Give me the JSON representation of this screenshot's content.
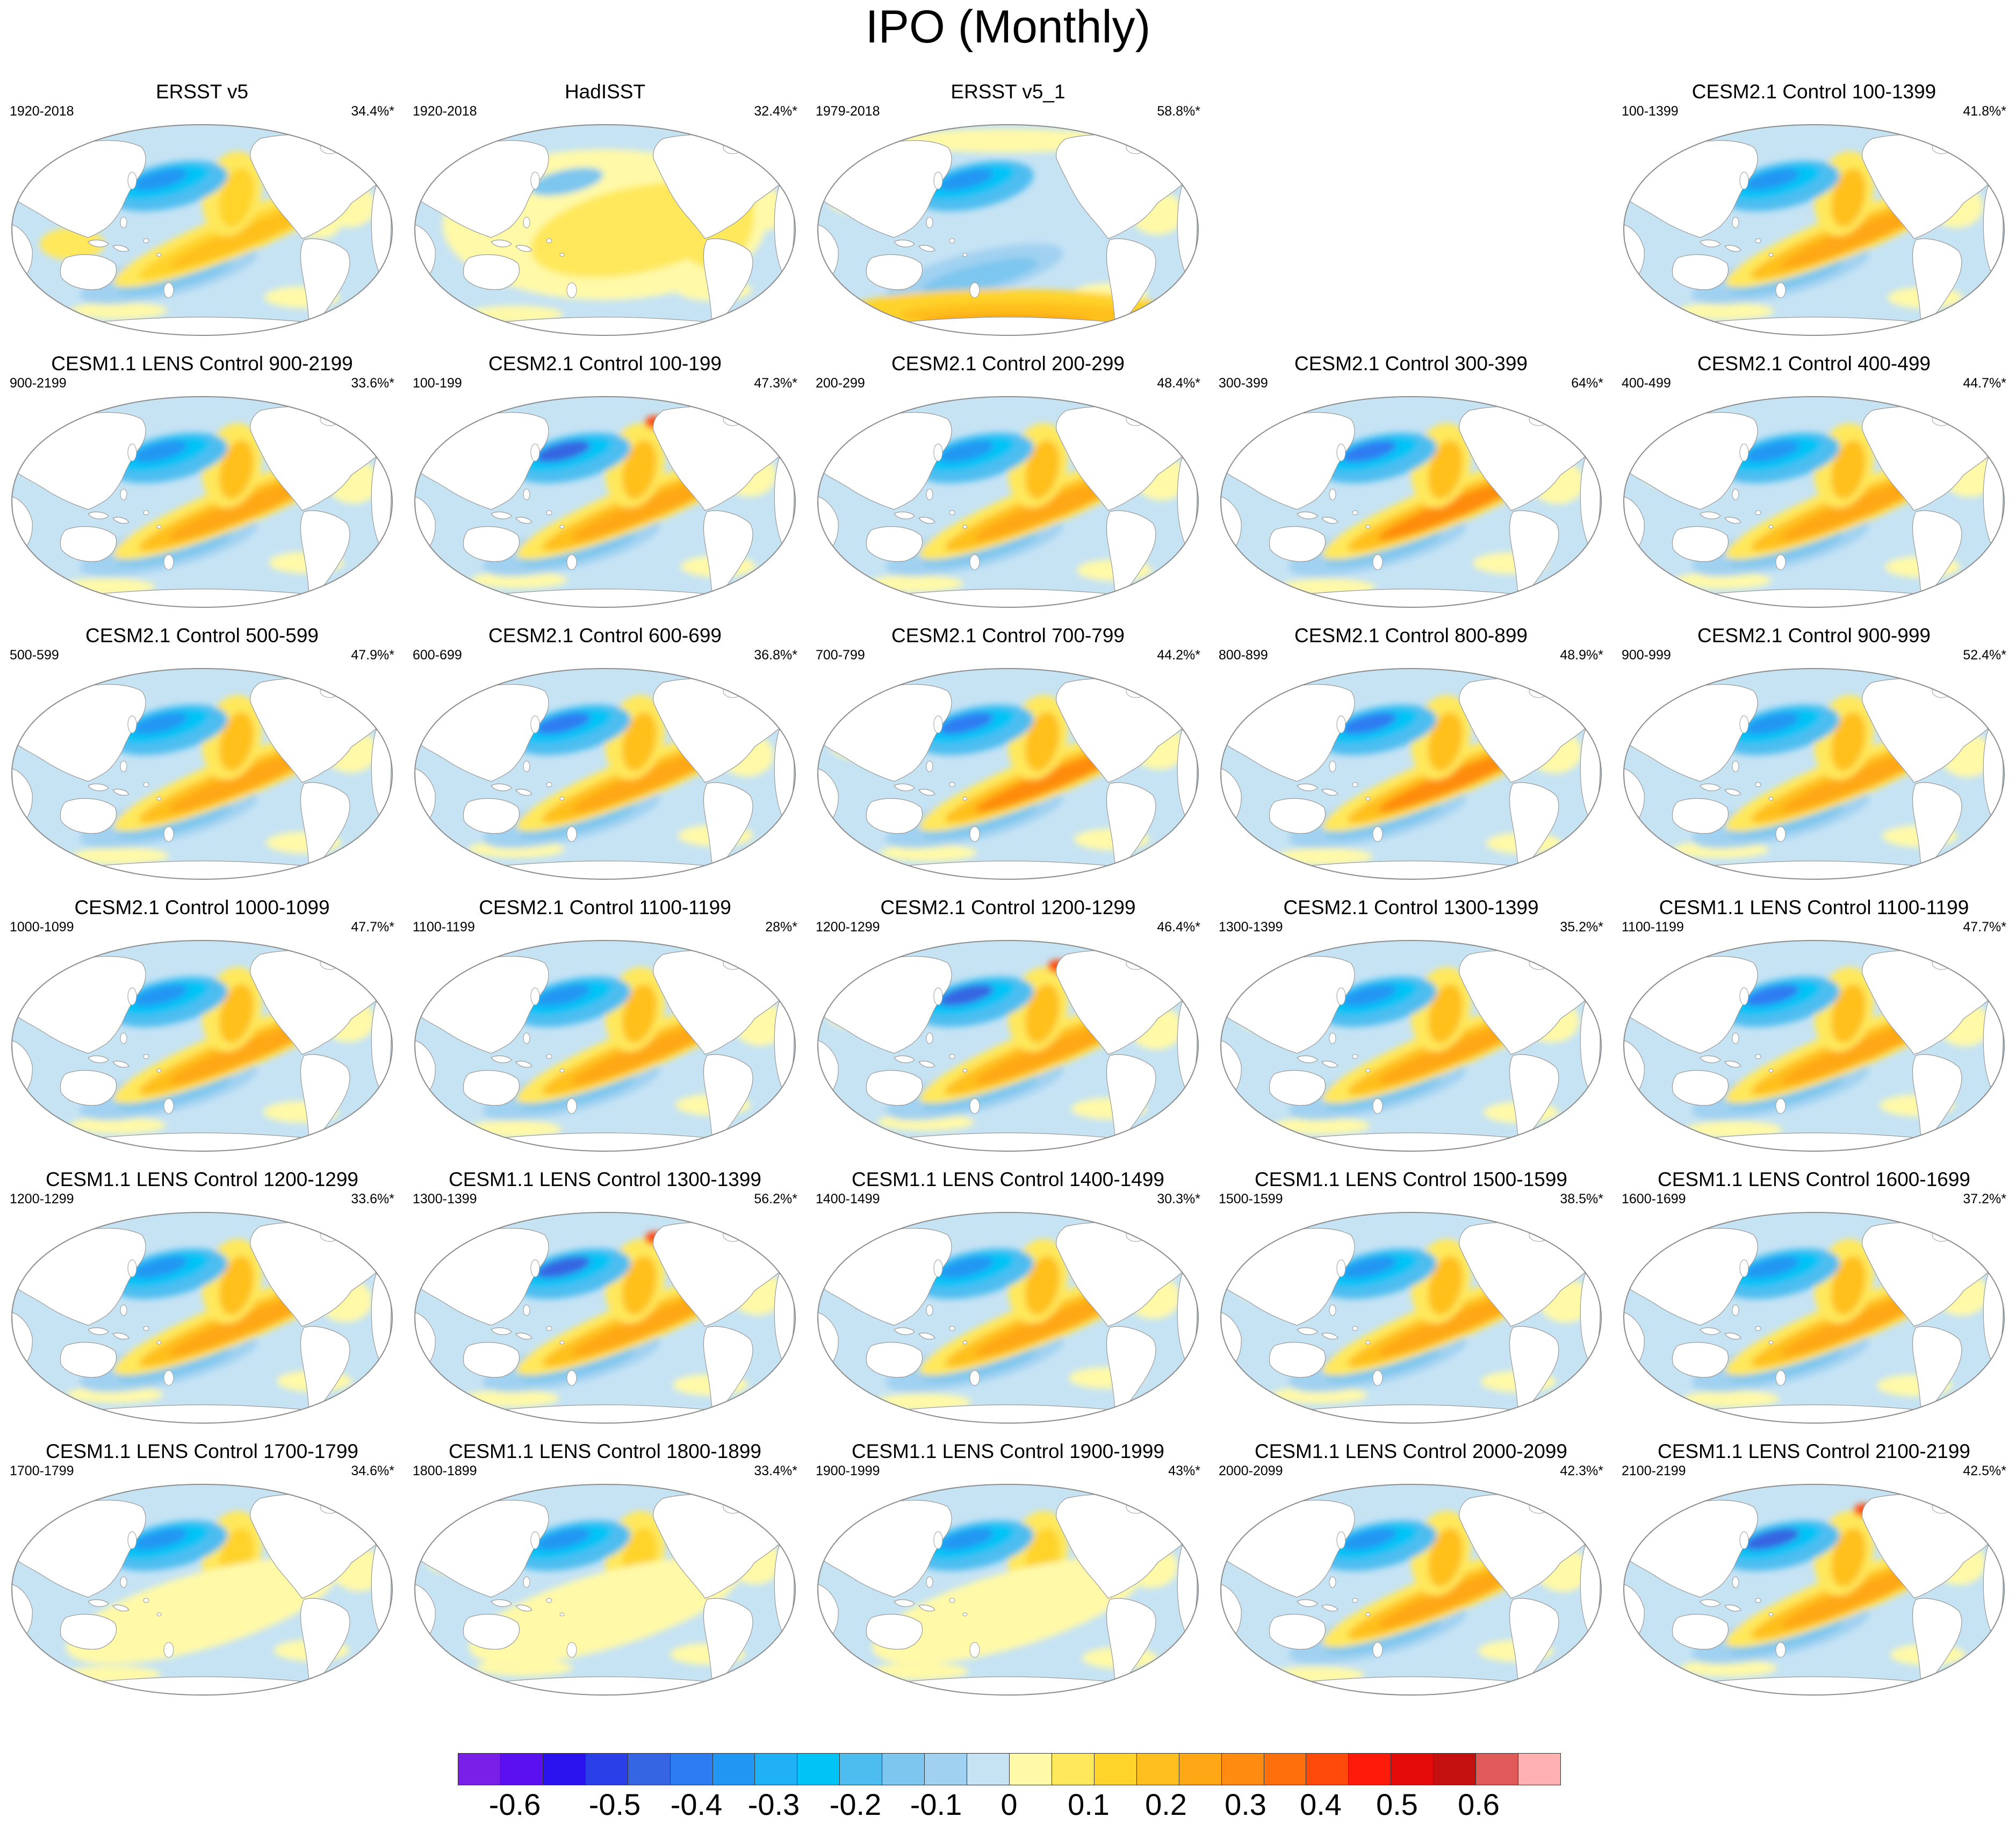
{
  "title": "IPO (Monthly)",
  "panels": [
    {
      "title": "ERSST v5",
      "period": "1920-2018",
      "pct": "34.4%*",
      "variant": 0
    },
    {
      "title": "HadISST",
      "period": "1920-2018",
      "pct": "32.4%*",
      "variant": 1
    },
    {
      "title": "ERSST v5_1",
      "period": "1979-2018",
      "pct": "58.8%*",
      "variant": 2
    },
    {
      "title": "CESM2.1 Control 100-1399",
      "period": "100-1399",
      "pct": "41.8%*",
      "variant": 3
    },
    {
      "title": "CESM1.1 LENS Control 900-2199",
      "period": "900-2199",
      "pct": "33.6%*",
      "variant": 4
    },
    {
      "title": "CESM2.1 Control 100-199",
      "period": "100-199",
      "pct": "47.3%*",
      "variant": 5
    },
    {
      "title": "CESM2.1 Control 200-299",
      "period": "200-299",
      "pct": "48.4%*",
      "variant": 6
    },
    {
      "title": "CESM2.1 Control 300-399",
      "period": "300-399",
      "pct": "64%*",
      "variant": 7
    },
    {
      "title": "CESM2.1 Control 400-499",
      "period": "400-499",
      "pct": "44.7%*",
      "variant": 8
    },
    {
      "title": "CESM2.1 Control 500-599",
      "period": "500-599",
      "pct": "47.9%*",
      "variant": 9
    },
    {
      "title": "CESM2.1 Control 600-699",
      "period": "600-699",
      "pct": "36.8%*",
      "variant": 10
    },
    {
      "title": "CESM2.1 Control 700-799",
      "period": "700-799",
      "pct": "44.2%*",
      "variant": 11
    },
    {
      "title": "CESM2.1 Control 800-899",
      "period": "800-899",
      "pct": "48.9%*",
      "variant": 12
    },
    {
      "title": "CESM2.1 Control 900-999",
      "period": "900-999",
      "pct": "52.4%*",
      "variant": 13
    },
    {
      "title": "CESM2.1 Control 1000-1099",
      "period": "1000-1099",
      "pct": "47.7%*",
      "variant": 14
    },
    {
      "title": "CESM2.1 Control 1100-1199",
      "period": "1100-1199",
      "pct": "28%*",
      "variant": 15
    },
    {
      "title": "CESM2.1 Control 1200-1299",
      "period": "1200-1299",
      "pct": "46.4%*",
      "variant": 16
    },
    {
      "title": "CESM2.1 Control 1300-1399",
      "period": "1300-1399",
      "pct": "35.2%*",
      "variant": 17
    },
    {
      "title": "CESM1.1 LENS Control 1100-1199",
      "period": "1100-1199",
      "pct": "47.7%*",
      "variant": 18
    },
    {
      "title": "CESM1.1 LENS Control 1200-1299",
      "period": "1200-1299",
      "pct": "33.6%*",
      "variant": 19
    },
    {
      "title": "CESM1.1 LENS Control 1300-1399",
      "period": "1300-1399",
      "pct": "56.2%*",
      "variant": 20
    },
    {
      "title": "CESM1.1 LENS Control 1400-1499",
      "period": "1400-1499",
      "pct": "30.3%*",
      "variant": 21
    },
    {
      "title": "CESM1.1 LENS Control 1500-1599",
      "period": "1500-1599",
      "pct": "38.5%*",
      "variant": 22
    },
    {
      "title": "CESM1.1 LENS Control 1600-1699",
      "period": "1600-1699",
      "pct": "37.2%*",
      "variant": 23
    },
    {
      "title": "CESM1.1 LENS Control 1700-1799",
      "period": "1700-1799",
      "pct": "34.6%*",
      "variant": 24
    },
    {
      "title": "CESM1.1 LENS Control 1800-1899",
      "period": "1800-1899",
      "pct": "33.4%*",
      "variant": 25
    },
    {
      "title": "CESM1.1 LENS Control 1900-1999",
      "period": "1900-1999",
      "pct": "43%*",
      "variant": 26
    },
    {
      "title": "CESM1.1 LENS Control 2000-2099",
      "period": "2000-2099",
      "pct": "42.3%*",
      "variant": 27
    },
    {
      "title": "CESM1.1 LENS Control 2100-2199",
      "period": "2100-2199",
      "pct": "42.5%*",
      "variant": 28
    }
  ],
  "colorbar": {
    "colors": [
      "#7a1fe8",
      "#5a10f0",
      "#2a12ef",
      "#2b3fe8",
      "#3565e2",
      "#2e7cf2",
      "#2296f3",
      "#1fb0f5",
      "#02c3f6",
      "#4dbdf0",
      "#7cc6ef",
      "#a1d1f1",
      "#c6e3f4",
      "#fff9a8",
      "#ffe85c",
      "#ffd32a",
      "#ffc01f",
      "#ffa715",
      "#ff8c10",
      "#ff700c",
      "#ff4a0a",
      "#ff1a0a",
      "#e40a0a",
      "#c4100f",
      "#e15a5a",
      "#ffb0b0"
    ],
    "labels": [
      "-0.6",
      "-0.5",
      "-0.4",
      "-0.3",
      "-0.2",
      "-0.1",
      "0",
      "0.1",
      "0.2",
      "0.3",
      "0.4",
      "0.5",
      "0.6"
    ]
  }
}
